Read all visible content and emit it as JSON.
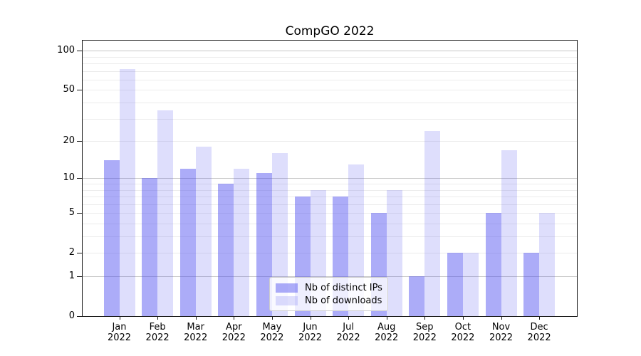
{
  "figure": {
    "title": "CompGO 2022"
  },
  "colors": {
    "bar_distinct_ips": "rgba(70,70,240,0.45)",
    "bar_downloads": "rgba(70,70,240,0.18)",
    "grid_major": "#c6c6c6",
    "grid_minor": "#ececec",
    "spine": "#1a1a1a"
  },
  "chart_data": {
    "type": "bar",
    "title": "CompGO 2022",
    "categories": [
      "Jan",
      "Feb",
      "Mar",
      "Apr",
      "May",
      "Jun",
      "Jul",
      "Aug",
      "Sep",
      "Oct",
      "Nov",
      "Dec"
    ],
    "category_year": "2022",
    "series": [
      {
        "name": "Nb of distinct IPs",
        "key": "distinct-ips",
        "values": [
          14,
          10,
          12,
          9,
          11,
          7,
          7,
          5,
          1,
          2,
          5,
          2
        ]
      },
      {
        "name": "Nb of downloads",
        "key": "downloads",
        "values": [
          72,
          35,
          18,
          12,
          16,
          8,
          13,
          8,
          24,
          2,
          17,
          5
        ]
      }
    ],
    "xlabel": "",
    "ylabel": "",
    "yscale": "log1p",
    "ylim": [
      0,
      120
    ],
    "ytick_values": [
      0,
      1,
      2,
      5,
      10,
      20,
      50,
      100
    ],
    "ytick_labels": [
      "0",
      "1",
      "2",
      "5",
      "10",
      "20",
      "50",
      "100"
    ],
    "grid": {
      "on": true,
      "major_values": [
        1,
        10,
        100
      ],
      "minor_values": [
        2,
        3,
        4,
        5,
        6,
        7,
        8,
        9,
        20,
        30,
        40,
        50,
        60,
        70,
        80,
        90
      ]
    },
    "legend_position": "lower center"
  }
}
